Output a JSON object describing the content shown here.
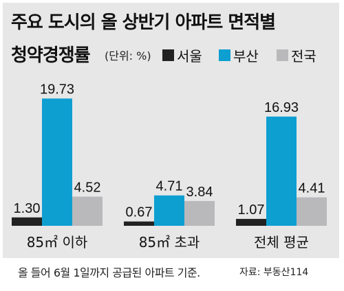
{
  "title_line1": "주요 도시의 올 상반기 아파트 면적별",
  "title_line2": "청약경쟁률",
  "unit_label": "(단위: %)",
  "footnote": "올 들어 6월 1일까지 공급된 아파트 기준.",
  "source": "자료: 부동산114",
  "chart_data": {
    "type": "bar",
    "title": "주요 도시의 올 상반기 아파트 면적별 청약경쟁률",
    "unit": "(단위: %)",
    "categories": [
      "85㎡ 이하",
      "85㎡ 초과",
      "전체 평균"
    ],
    "series": [
      {
        "name": "서울",
        "color": "#222222",
        "values": [
          1.3,
          0.67,
          1.07
        ],
        "labels": [
          "1.30",
          "0.67",
          "1.07"
        ]
      },
      {
        "name": "부산",
        "color": "#0e9fd1",
        "values": [
          19.73,
          4.71,
          16.93
        ],
        "labels": [
          "19.73",
          "4.71",
          "16.93"
        ]
      },
      {
        "name": "전국",
        "color": "#b9b9bb",
        "values": [
          4.52,
          3.84,
          4.41
        ],
        "labels": [
          "4.52",
          "3.84",
          "4.41"
        ]
      }
    ],
    "ylim": [
      0,
      22
    ],
    "legend": "top-right",
    "grid": false
  }
}
